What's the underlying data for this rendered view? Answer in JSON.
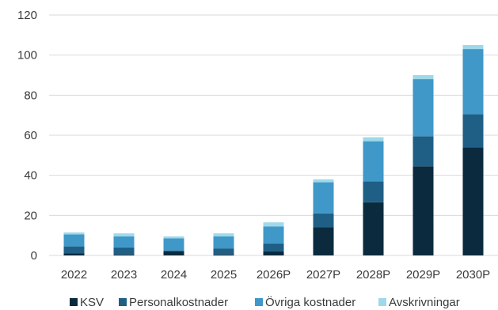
{
  "chart_data": {
    "type": "bar",
    "stacked": true,
    "categories": [
      "2022",
      "2023",
      "2024",
      "2025",
      "2026P",
      "2027P",
      "2028P",
      "2029P",
      "2030P"
    ],
    "series": [
      {
        "name": "KSV",
        "color": "#0b2a3d",
        "values": [
          1,
          0.5,
          2,
          0.5,
          2,
          14,
          26.5,
          44.5,
          54
        ]
      },
      {
        "name": "Personalkostnader",
        "color": "#1f5f86",
        "values": [
          3.5,
          3.5,
          0.5,
          3,
          4,
          7,
          10.5,
          15,
          16.5
        ]
      },
      {
        "name": "Övriga kostnader",
        "color": "#3f98c8",
        "values": [
          6,
          5.5,
          6,
          6,
          8.5,
          15.5,
          20,
          28.5,
          32.5
        ]
      },
      {
        "name": "Avskrivningar",
        "color": "#9fd8ea",
        "values": [
          1,
          1.5,
          1,
          1.5,
          2,
          1.5,
          2,
          2,
          2
        ]
      }
    ],
    "ylim": [
      0,
      120
    ],
    "yticks": [
      0,
      20,
      40,
      60,
      80,
      100,
      120
    ],
    "grid": true,
    "legend": "bottom"
  }
}
